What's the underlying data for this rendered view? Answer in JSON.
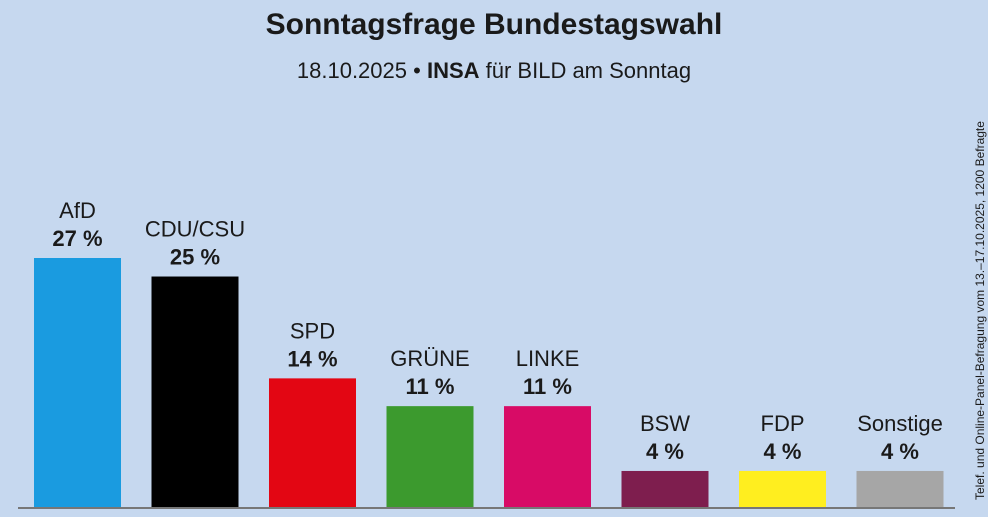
{
  "title": "Sonntagsfrage Bundestagswahl",
  "subtitle": {
    "date": "18.10.2025",
    "separator": "•",
    "institute": "INSA",
    "client": "für BILD am Sonntag"
  },
  "source_note": "Telef. und Online-Panel-Befragung vom 13.–17.10.2025, 1200 Befragte",
  "chart_data": {
    "type": "bar",
    "title": "Sonntagsfrage Bundestagswahl",
    "categories": [
      "AfD",
      "CDU/CSU",
      "SPD",
      "GRÜNE",
      "LINKE",
      "BSW",
      "FDP",
      "Sonstige"
    ],
    "values": [
      27,
      25,
      14,
      11,
      11,
      4,
      4,
      4
    ],
    "value_labels": [
      "27 %",
      "25 %",
      "14 %",
      "11 %",
      "11 %",
      "4 %",
      "4 %",
      "4 %"
    ],
    "colors": [
      "#1a9be0",
      "#000000",
      "#e30613",
      "#3c9a2e",
      "#d80b66",
      "#7e1e4e",
      "#ffee1f",
      "#a6a6a6"
    ],
    "ylim": [
      0,
      27
    ],
    "grid": false,
    "legend": "none",
    "xlabel": "",
    "ylabel": ""
  }
}
